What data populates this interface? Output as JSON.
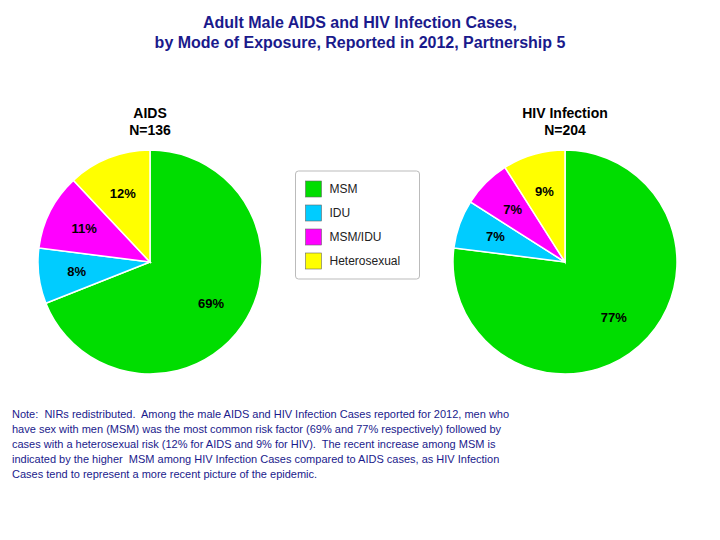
{
  "chart_data": {
    "type": "pie",
    "title": "Adult Male AIDS and HIV Infection Cases,\nby Mode of Exposure, Reported in 2012, Partnership 5",
    "categories": [
      "MSM",
      "IDU",
      "MSM/IDU",
      "Heterosexual"
    ],
    "colors": [
      "#00dd00",
      "#00ccff",
      "#ff00ff",
      "#ffff00"
    ],
    "series": [
      {
        "name": "AIDS\nN=136",
        "values": [
          69,
          8,
          11,
          12
        ],
        "value_labels": [
          "69%",
          "8%",
          "11%",
          "12%"
        ]
      },
      {
        "name": "HIV Infection\nN=204",
        "values": [
          77,
          7,
          7,
          9
        ],
        "value_labels": [
          "77%",
          "7%",
          "7%",
          "9%"
        ]
      }
    ],
    "data_labels": true,
    "legend": "center",
    "annotations": [
      "Note:  NIRs redistributed.  Among the male AIDS and HIV Infection Cases reported for 2012, men who\nhave sex with men (MSM) was the most common risk factor (69% and 77% respectively) followed by\ncases with a heterosexual risk (12% for AIDS and 9% for HIV).  The recent increase among MSM is\nindicated by the higher  MSM among HIV Infection Cases compared to AIDS cases, as HIV Infection\nCases tend to represent a more recent picture of the epidemic."
    ]
  }
}
